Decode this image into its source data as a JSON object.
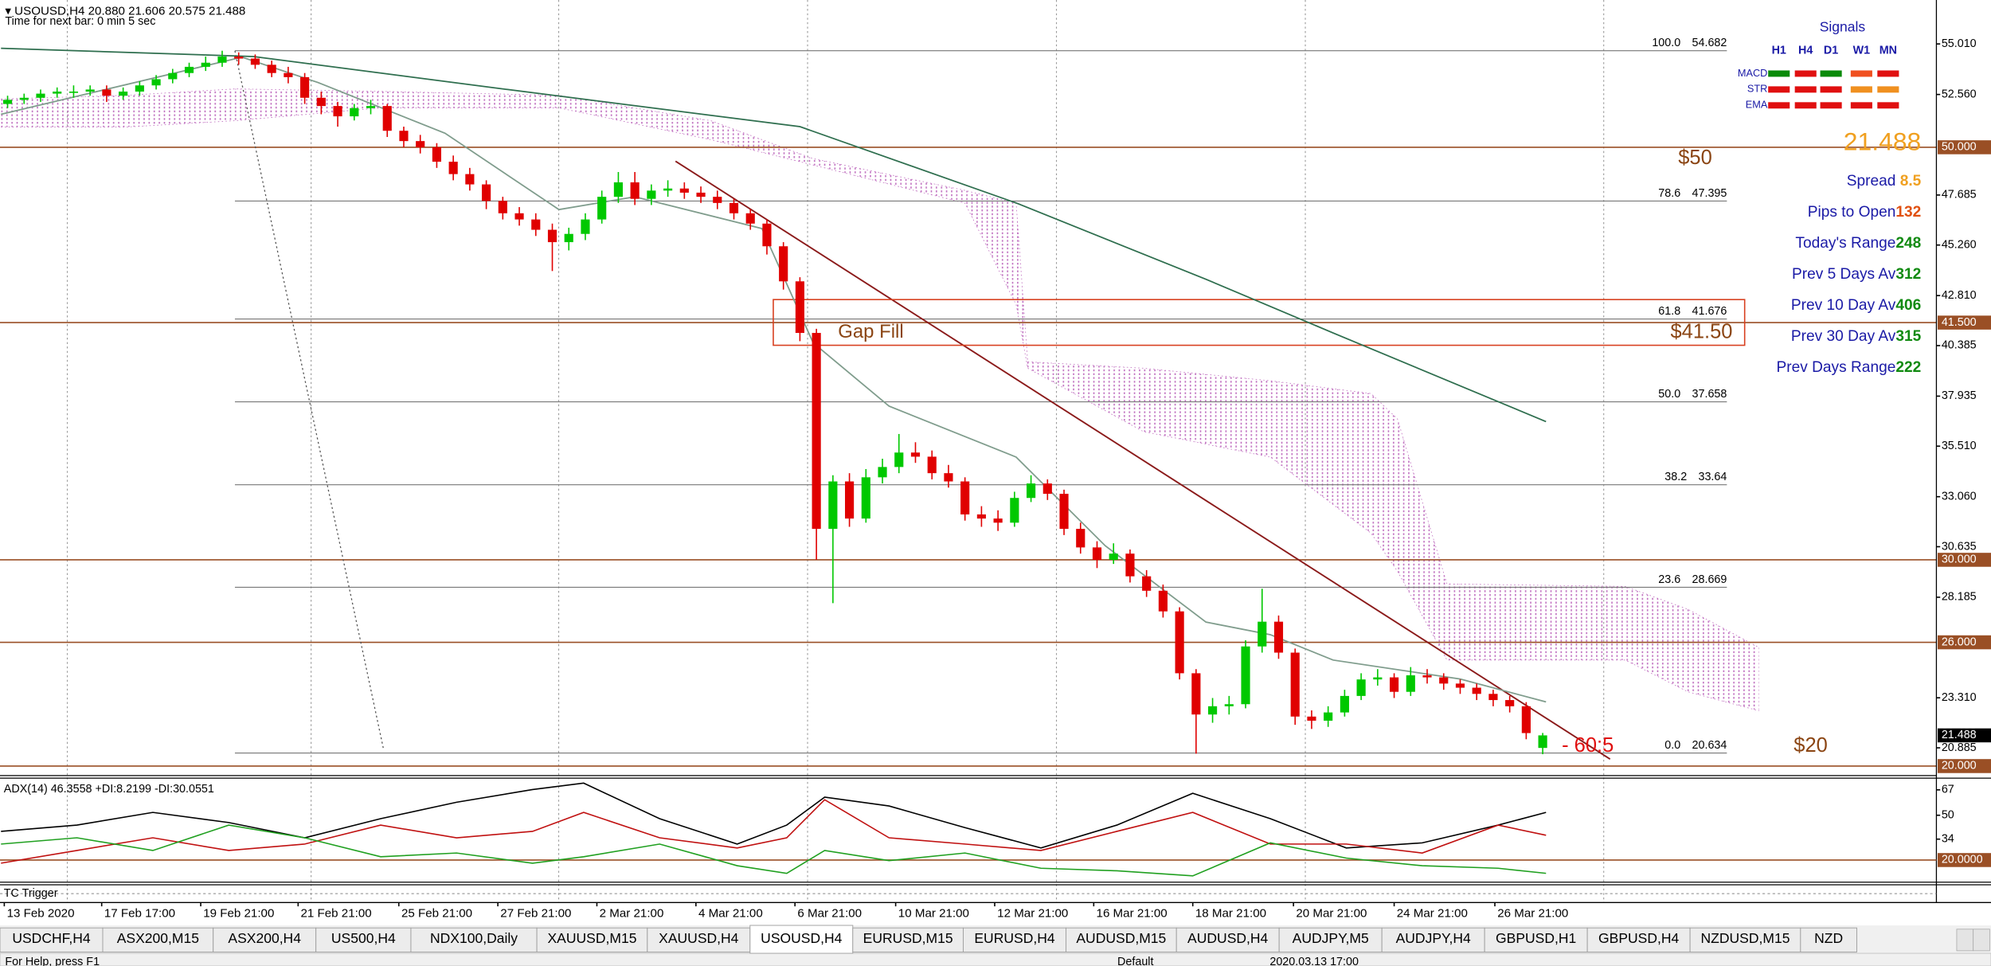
{
  "header": {
    "symbol_line": "USOUSD,H4  20.880 21.606 20.575 21.488",
    "timer": "Time for next bar: 0 min 5 sec"
  },
  "chart_data": {
    "type": "candlestick",
    "xlim": [
      -0.46,
      116.85
    ],
    "ylim": [
      19.6,
      57.14
    ],
    "up_color": "#00c800",
    "down_color": "#e00000",
    "candles": [
      [
        52.1,
        52.5,
        51.9,
        52.3
      ],
      [
        52.3,
        52.6,
        52.1,
        52.4
      ],
      [
        52.4,
        52.8,
        52.2,
        52.6
      ],
      [
        52.6,
        52.9,
        52.4,
        52.7
      ],
      [
        52.7,
        53.0,
        52.4,
        52.7
      ],
      [
        52.7,
        53.0,
        52.5,
        52.8
      ],
      [
        52.8,
        53.0,
        52.2,
        52.5
      ],
      [
        52.5,
        52.9,
        52.3,
        52.7
      ],
      [
        52.7,
        53.2,
        52.5,
        53.0
      ],
      [
        53.0,
        53.5,
        52.8,
        53.3
      ],
      [
        53.3,
        53.8,
        53.1,
        53.6
      ],
      [
        53.6,
        54.1,
        53.4,
        53.9
      ],
      [
        53.9,
        54.4,
        53.7,
        54.1
      ],
      [
        54.1,
        54.68,
        53.9,
        54.4
      ],
      [
        54.4,
        54.6,
        54.0,
        54.3
      ],
      [
        54.3,
        54.5,
        53.8,
        54.0
      ],
      [
        54.0,
        54.2,
        53.4,
        53.6
      ],
      [
        53.6,
        53.9,
        53.1,
        53.4
      ],
      [
        53.4,
        53.6,
        52.1,
        52.4
      ],
      [
        52.4,
        52.7,
        51.6,
        52.0
      ],
      [
        52.0,
        52.2,
        51.0,
        51.5
      ],
      [
        51.5,
        52.1,
        51.3,
        51.9
      ],
      [
        51.9,
        52.3,
        51.6,
        52.0
      ],
      [
        52.0,
        52.1,
        50.5,
        50.8
      ],
      [
        50.8,
        51.0,
        50.0,
        50.3
      ],
      [
        50.3,
        50.6,
        49.7,
        50.0
      ],
      [
        50.0,
        50.2,
        49.0,
        49.3
      ],
      [
        49.3,
        49.6,
        48.4,
        48.7
      ],
      [
        48.7,
        49.0,
        47.9,
        48.2
      ],
      [
        48.2,
        48.4,
        47.0,
        47.4
      ],
      [
        47.4,
        47.6,
        46.5,
        46.8
      ],
      [
        46.8,
        47.1,
        46.2,
        46.5
      ],
      [
        46.5,
        46.8,
        45.7,
        46.0
      ],
      [
        46.0,
        46.3,
        44.0,
        45.4
      ],
      [
        45.4,
        46.1,
        45.0,
        45.8
      ],
      [
        45.8,
        46.8,
        45.5,
        46.5
      ],
      [
        46.5,
        47.9,
        46.3,
        47.6
      ],
      [
        47.6,
        48.8,
        47.3,
        48.3
      ],
      [
        48.3,
        48.8,
        47.2,
        47.5
      ],
      [
        47.5,
        48.2,
        47.2,
        47.9
      ],
      [
        47.9,
        48.4,
        47.6,
        48.0
      ],
      [
        48.0,
        48.3,
        47.5,
        47.8
      ],
      [
        47.8,
        48.1,
        47.3,
        47.6
      ],
      [
        47.6,
        47.9,
        47.0,
        47.3
      ],
      [
        47.3,
        47.5,
        46.5,
        46.8
      ],
      [
        46.8,
        47.0,
        46.0,
        46.3
      ],
      [
        46.3,
        46.5,
        44.8,
        45.2
      ],
      [
        45.2,
        45.4,
        43.1,
        43.5
      ],
      [
        43.5,
        43.7,
        40.6,
        41.0
      ],
      [
        41.0,
        41.2,
        30.0,
        31.5
      ],
      [
        31.5,
        34.1,
        27.9,
        33.8
      ],
      [
        33.8,
        34.2,
        31.6,
        32.0
      ],
      [
        32.0,
        34.4,
        31.8,
        34.0
      ],
      [
        34.0,
        34.9,
        33.7,
        34.5
      ],
      [
        34.5,
        36.1,
        34.2,
        35.2
      ],
      [
        35.2,
        35.7,
        34.7,
        35.0
      ],
      [
        35.0,
        35.3,
        33.9,
        34.2
      ],
      [
        34.2,
        34.6,
        33.5,
        33.8
      ],
      [
        33.8,
        34.0,
        31.9,
        32.2
      ],
      [
        32.2,
        32.6,
        31.6,
        32.0
      ],
      [
        32.0,
        32.4,
        31.4,
        31.8
      ],
      [
        31.8,
        33.3,
        31.6,
        33.0
      ],
      [
        33.0,
        34.1,
        32.8,
        33.7
      ],
      [
        33.7,
        33.9,
        32.9,
        33.2
      ],
      [
        33.2,
        33.4,
        31.2,
        31.5
      ],
      [
        31.5,
        31.8,
        30.3,
        30.6
      ],
      [
        30.6,
        30.9,
        29.6,
        30.0
      ],
      [
        30.0,
        30.8,
        29.8,
        30.3
      ],
      [
        30.3,
        30.5,
        28.9,
        29.2
      ],
      [
        29.2,
        29.5,
        28.2,
        28.5
      ],
      [
        28.5,
        28.8,
        27.2,
        27.5
      ],
      [
        27.5,
        27.7,
        24.2,
        24.5
      ],
      [
        24.5,
        24.7,
        20.6,
        22.5
      ],
      [
        22.5,
        23.3,
        22.1,
        22.9
      ],
      [
        22.9,
        23.4,
        22.5,
        23.0
      ],
      [
        23.0,
        26.1,
        22.8,
        25.8
      ],
      [
        25.8,
        28.6,
        25.5,
        27.0
      ],
      [
        27.0,
        27.3,
        25.2,
        25.5
      ],
      [
        25.5,
        25.7,
        22.0,
        22.4
      ],
      [
        22.4,
        22.7,
        21.8,
        22.2
      ],
      [
        22.2,
        22.9,
        21.9,
        22.6
      ],
      [
        22.6,
        23.7,
        22.4,
        23.4
      ],
      [
        23.4,
        24.5,
        23.2,
        24.2
      ],
      [
        24.2,
        24.7,
        23.9,
        24.3
      ],
      [
        24.3,
        24.5,
        23.3,
        23.6
      ],
      [
        23.6,
        24.8,
        23.4,
        24.4
      ],
      [
        24.4,
        24.7,
        24.0,
        24.3
      ],
      [
        24.3,
        24.5,
        23.7,
        24.0
      ],
      [
        24.0,
        24.2,
        23.5,
        23.8
      ],
      [
        23.8,
        24.0,
        23.2,
        23.5
      ],
      [
        23.5,
        23.7,
        22.9,
        23.2
      ],
      [
        23.2,
        23.4,
        22.6,
        22.9
      ],
      [
        22.9,
        23.1,
        21.3,
        21.6
      ],
      [
        20.88,
        21.606,
        20.575,
        21.488
      ]
    ],
    "lines": [
      {
        "color": "#2e6e4e",
        "x": [
          -0.4,
          14.9,
          30.3,
          48,
          61.1,
          72.6,
          80.3,
          93.2
        ],
        "values": [
          54.8,
          54.4,
          52.8,
          51.0,
          47.3,
          43.6,
          41.0,
          36.7
        ]
      },
      {
        "color": "#7f9c8c",
        "x": [
          -0.4,
          14.2,
          18.8,
          26.5,
          33.4,
          38,
          45.7,
          48.8,
          53.4,
          61.1,
          66.5,
          72.6,
          76.5,
          80.3,
          88,
          93.2
        ],
        "values": [
          51.6,
          54.37,
          53.14,
          50.68,
          46.98,
          47.6,
          46.06,
          40.52,
          37.45,
          34.98,
          30.68,
          26.98,
          26.37,
          25.14,
          24.22,
          23.11
        ]
      }
    ],
    "cloud": {
      "color": "#c070c0",
      "x": [
        -0.4,
        7.2,
        13.8,
        22.6,
        33.4,
        42.6,
        48.8,
        58,
        61.1,
        61.8,
        68.8,
        76.5,
        82.6,
        84.2,
        87.2,
        98,
        101.8,
        106.1
      ],
      "upper": [
        52.34,
        52.52,
        52.83,
        52.71,
        52.52,
        51.29,
        49.45,
        47.91,
        47.29,
        39.6,
        39.29,
        38.68,
        38.06,
        36.83,
        28.83,
        28.71,
        27.6,
        25.75
      ],
      "lower": [
        50.98,
        50.98,
        51.29,
        51.91,
        51.91,
        50.37,
        49.14,
        47.29,
        42.37,
        39.29,
        36.22,
        34.98,
        31.29,
        29.45,
        25.14,
        25.14,
        23.6,
        22.68
      ]
    },
    "yticks": [
      {
        "value": 55.01,
        "label": "55.010"
      },
      {
        "value": 52.56,
        "label": "52.560"
      },
      {
        "value": 47.685,
        "label": "47.685"
      },
      {
        "value": 45.26,
        "label": "45.260"
      },
      {
        "value": 42.81,
        "label": "42.810"
      },
      {
        "value": 40.385,
        "label": "40.385"
      },
      {
        "value": 37.935,
        "label": "37.935"
      },
      {
        "value": 35.51,
        "label": "35.510"
      },
      {
        "value": 33.06,
        "label": "33.060"
      },
      {
        "value": 30.635,
        "label": "30.635"
      },
      {
        "value": 28.185,
        "label": "28.185"
      },
      {
        "value": 23.31,
        "label": "23.310"
      },
      {
        "value": 20.885,
        "label": "20.885"
      }
    ],
    "levels": [
      {
        "value": 50,
        "label": "50.000"
      },
      {
        "value": 41.5,
        "label": "41.500"
      },
      {
        "value": 30,
        "label": "30.000"
      },
      {
        "value": 26,
        "label": "26.000"
      },
      {
        "value": 20,
        "label": "20.000"
      }
    ],
    "level_color": "#9a4f25",
    "current": {
      "value": 21.488,
      "label": "21.488"
    },
    "fib": [
      {
        "level": "100.0",
        "price": 54.682
      },
      {
        "level": "78.6",
        "price": 47.395
      },
      {
        "level": "61.8",
        "price": 41.676
      },
      {
        "level": "50.0",
        "price": 37.658
      },
      {
        "level": "38.2",
        "price": 33.64
      },
      {
        "level": "23.6",
        "price": 28.669
      },
      {
        "level": "0.0",
        "price": 20.634
      }
    ],
    "xticks": [
      {
        "value": -0.2,
        "label": "13 Feb 2020"
      },
      {
        "value": 5.7,
        "label": "17 Feb 17:00"
      },
      {
        "value": 11.7,
        "label": "19 Feb 21:00"
      },
      {
        "value": 17.6,
        "label": "21 Feb 21:00"
      },
      {
        "value": 23.7,
        "label": "25 Feb 21:00"
      },
      {
        "value": 29.7,
        "label": "27 Feb 21:00"
      },
      {
        "value": 35.7,
        "label": "2 Mar 21:00"
      },
      {
        "value": 41.7,
        "label": "4 Mar 21:00"
      },
      {
        "value": 47.7,
        "label": "6 Mar 21:00"
      },
      {
        "value": 53.8,
        "label": "10 Mar 21:00"
      },
      {
        "value": 59.8,
        "label": "12 Mar 21:00"
      },
      {
        "value": 65.8,
        "label": "16 Mar 21:00"
      },
      {
        "value": 71.8,
        "label": "18 Mar 21:00"
      },
      {
        "value": 77.9,
        "label": "20 Mar 21:00"
      },
      {
        "value": 84,
        "label": "24 Mar 21:00"
      },
      {
        "value": 90.1,
        "label": "26 Mar 21:00"
      }
    ],
    "annotations": {
      "fifty": "$50",
      "gap_level": "$41.50",
      "twenty": "$20",
      "gap_fill": "Gap Fill",
      "count": "- 60:5"
    },
    "adx": {
      "title": "ADX(14) 46.3558 +DI:8.2199 -DI:30.0551",
      "ylim": [
        6,
        74
      ],
      "yticks": [
        67,
        50,
        34
      ],
      "level": {
        "value": 20,
        "label": "20.0000"
      },
      "x": [
        -0.4,
        4.2,
        8.8,
        13.4,
        18,
        22.6,
        27.2,
        31.8,
        34.9,
        39.5,
        44.2,
        47.2,
        49.5,
        53.4,
        58,
        62.6,
        67.2,
        71.8,
        76.5,
        81.1,
        85.7,
        90.3,
        93.2
      ],
      "series": [
        {
          "color": "#000000",
          "values": [
            39.2,
            43.4,
            51.9,
            45.1,
            34.9,
            47.7,
            58.7,
            67.2,
            71.5,
            47.7,
            30.7,
            43.4,
            62.1,
            56.2,
            41.7,
            28.1,
            43.4,
            64.7,
            47.7,
            28.1,
            31.5,
            43.4,
            51.9
          ]
        },
        {
          "color": "#c01010",
          "values": [
            17.9,
            26.4,
            34.9,
            26.4,
            30.7,
            43.4,
            34.9,
            39.2,
            51.9,
            34.9,
            28.1,
            34.9,
            60.4,
            34.9,
            30.7,
            26.4,
            39.2,
            51.9,
            30.7,
            30.7,
            24.7,
            43.4,
            36.6
          ]
        },
        {
          "color": "#20a020",
          "values": [
            30.7,
            34.9,
            26.4,
            43.4,
            34.9,
            22.2,
            24.7,
            17.9,
            22.2,
            30.7,
            16.2,
            11.1,
            26.4,
            19.6,
            24.7,
            14.5,
            12.8,
            9.4,
            31.5,
            21.3,
            16.2,
            14.5,
            11.1
          ]
        }
      ]
    },
    "tc_title": "TC Trigger"
  },
  "signals": {
    "title": "Signals",
    "columns": [
      "H1",
      "H4",
      "D1",
      "W1",
      "MN"
    ],
    "rows": [
      {
        "name": "MACD",
        "colors": [
          "#0a8a0a",
          "#e01010",
          "#0a8a0a",
          "#f05020",
          "#e01010"
        ]
      },
      {
        "name": "STR",
        "colors": [
          "#e01010",
          "#e01010",
          "#e01010",
          "#f09020",
          "#f09020"
        ]
      },
      {
        "name": "EMA",
        "colors": [
          "#e01010",
          "#e01010",
          "#e01010",
          "#e01010",
          "#e01010"
        ]
      }
    ]
  },
  "info": {
    "price": "21.488",
    "items": [
      {
        "label": "Spread ",
        "value": 8.5,
        "color": "#f0a020"
      },
      {
        "label": "Pips to Open",
        "value": 132,
        "color": "#e05010"
      },
      {
        "label": "Today's Range",
        "value": 248,
        "color": "#108a10"
      },
      {
        "label": "Prev 5 Days Av",
        "value": 312,
        "color": "#108a10"
      },
      {
        "label": "Prev 10 Day Av",
        "value": 406,
        "color": "#108a10"
      },
      {
        "label": "Prev 30 Day Av",
        "value": 315,
        "color": "#108a10"
      },
      {
        "label": "Prev Days Range",
        "value": 222,
        "color": "#108a10"
      }
    ]
  },
  "tabs": {
    "active": 7,
    "items": [
      "USDCHF,H4",
      "ASX200,M15",
      "ASX200,H4",
      "US500,H4",
      "NDX100,Daily",
      "XAUUSD,M15",
      "XAUUSD,H4",
      "USOUSD,H4",
      "EURUSD,M15",
      "EURUSD,H4",
      "AUDUSD,M15",
      "AUDUSD,H4",
      "AUDJPY,M5",
      "AUDJPY,H4",
      "GBPUSD,H1",
      "GBPUSD,H4",
      "NZDUSD,M15",
      "NZD"
    ]
  },
  "status": {
    "help": "For Help, press F1",
    "profile": "Default",
    "time": "2020.03.13 17:00"
  }
}
